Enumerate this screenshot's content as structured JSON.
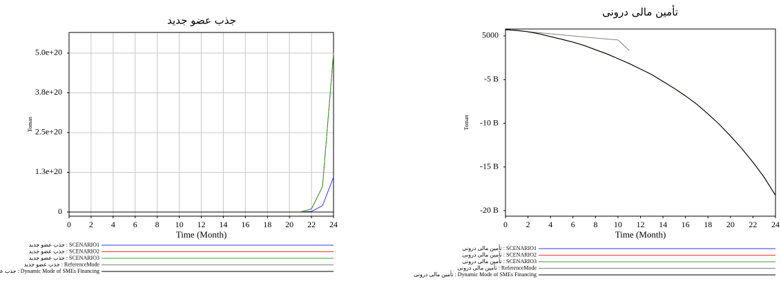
{
  "chart_data": [
    {
      "type": "line",
      "title": "جذب عضو جدید",
      "x_label": "Time (Month)",
      "y_label": "Toman",
      "x": [
        0,
        1,
        2,
        3,
        4,
        5,
        6,
        7,
        8,
        9,
        10,
        11,
        12,
        13,
        14,
        15,
        16,
        17,
        18,
        19,
        20,
        21,
        22,
        23,
        24
      ],
      "xlim": [
        0,
        24
      ],
      "xticks": [
        0,
        2,
        4,
        6,
        8,
        10,
        12,
        14,
        16,
        18,
        20,
        22,
        24
      ],
      "ylim": [
        -1.3e+19,
        5.65e+20
      ],
      "yticks": [
        0,
        {
          "value": 1.25e+20,
          "label": "1.3e+20"
        },
        {
          "value": 2.5e+20,
          "label": "2.5e+20"
        },
        {
          "value": 3.75e+20,
          "label": "3.8e+20"
        },
        {
          "value": 5e+20,
          "label": "5.0e+20"
        }
      ],
      "grid": true,
      "series": [
        {
          "name": "جذب عضو جدید : SCENARIO1",
          "color": "#3333ff",
          "values": [
            0,
            0,
            0,
            0,
            0,
            0,
            0,
            0,
            0,
            0,
            0,
            0,
            0,
            0,
            0,
            0,
            0,
            0,
            0,
            0,
            0,
            0,
            2e+18,
            2e+19,
            1.1e+20
          ]
        },
        {
          "name": "جذب عضو جدید : SCENARIO2",
          "color": "#ff3333",
          "values": [
            0,
            0,
            0,
            0,
            0,
            0,
            0,
            0,
            0,
            0,
            0,
            0,
            0,
            0,
            0,
            0,
            0,
            0,
            0,
            0,
            0,
            0,
            1e+19,
            8e+19,
            5e+20
          ]
        },
        {
          "name": "جذب عضو جدید : SCENARIO3",
          "color": "#33a033",
          "values": [
            0,
            0,
            0,
            0,
            0,
            0,
            0,
            0,
            0,
            0,
            0,
            0,
            0,
            0,
            0,
            0,
            0,
            0,
            0,
            0,
            0,
            0,
            1e+19,
            8e+19,
            5e+20
          ]
        },
        {
          "name": "جذب عضو جدید : ReferenceMode",
          "color": "#808080",
          "values": [
            0,
            0,
            0,
            0,
            0,
            0,
            0,
            0,
            0,
            0,
            0,
            0,
            0,
            0,
            0,
            0,
            0,
            0,
            0,
            0,
            0,
            0,
            0,
            0,
            0
          ]
        },
        {
          "name": "جذب عضو جدید : Dynamic Mode of SMEs Financing",
          "color": "#000000",
          "values": [
            0,
            0,
            0,
            0,
            0,
            0,
            0,
            0,
            0,
            0,
            0,
            0,
            0,
            0,
            0,
            0,
            0,
            0,
            0,
            0,
            0,
            0,
            0,
            0,
            0
          ]
        }
      ]
    },
    {
      "type": "line",
      "title": "تأمین مالی درونی",
      "x_label": "Time (Month)",
      "y_label": "Toman",
      "x": [
        0,
        1,
        2,
        3,
        4,
        5,
        6,
        7,
        8,
        9,
        10,
        11,
        12,
        13,
        14,
        15,
        16,
        17,
        18,
        19,
        20,
        21,
        22,
        23,
        24
      ],
      "xlim": [
        0,
        24
      ],
      "xticks": [
        0,
        2,
        4,
        6,
        8,
        10,
        12,
        14,
        16,
        18,
        20,
        22,
        24
      ],
      "ylim": [
        -20630000000.0,
        790000000.0
      ],
      "yticks": [
        {
          "value": -20000000000.0,
          "label": "-20 B"
        },
        {
          "value": -15000000000.0,
          "label": "-15 B"
        },
        {
          "value": -10000000000.0,
          "label": "-10 B"
        },
        {
          "value": -5000000000.0,
          "label": "-5 B"
        },
        5000
      ],
      "grid": false,
      "series": [
        {
          "name": "تأمین مالی درونی : SCENARIO1",
          "color": "#3333ff",
          "values": [
            710000000.0,
            630000000.0,
            470000000.0,
            240000000.0,
            -80000000.0,
            -390000000.0,
            -710000000.0,
            -1100000000.0,
            -1580000000.0,
            -2050000000.0,
            -2600000000.0,
            -3160000000.0,
            -3790000000.0,
            -4420000000.0,
            -5210000000.0,
            -6000000000.0,
            -6870000000.0,
            -7820000000.0,
            -8930000000.0,
            -10100000000.0,
            -11450000000.0,
            -12880000000.0,
            -14460000000.0,
            -16190000000.0,
            -18250000000.0
          ]
        },
        {
          "name": "تأمین مالی درونی : SCENARIO2",
          "color": "#ff3333",
          "values": [
            710000000.0,
            630000000.0,
            470000000.0,
            240000000.0,
            -80000000.0,
            -390000000.0,
            -710000000.0,
            -1100000000.0,
            -1580000000.0,
            -2050000000.0,
            -2600000000.0,
            -3160000000.0,
            -3790000000.0,
            -4420000000.0,
            -5210000000.0,
            -6000000000.0,
            -6870000000.0,
            -7820000000.0,
            -8930000000.0,
            -10100000000.0,
            -11450000000.0,
            -12880000000.0,
            -14460000000.0,
            -16190000000.0,
            -18250000000.0
          ]
        },
        {
          "name": "تأمین مالی درونی : SCENARIO3",
          "color": "#33a033",
          "values": [
            710000000.0,
            630000000.0,
            470000000.0,
            240000000.0,
            -80000000.0,
            -390000000.0,
            -710000000.0,
            -1100000000.0,
            -1580000000.0,
            -2050000000.0,
            -2600000000.0,
            -3160000000.0,
            -3790000000.0,
            -4420000000.0,
            -5210000000.0,
            -6000000000.0,
            -6870000000.0,
            -7820000000.0,
            -8930000000.0,
            -10100000000.0,
            -11450000000.0,
            -12880000000.0,
            -14460000000.0,
            -16190000000.0,
            -18250000000.0
          ]
        },
        {
          "name": "تأمین مالی درونی : ReferenceMode",
          "color": "#808080",
          "values": [
            710000000.0,
            590000000.0,
            480000000.0,
            360000000.0,
            240000000.0,
            120000000.0,
            0,
            -120000000.0,
            -240000000.0,
            -360000000.0,
            -470000000.0,
            -1660000000.0,
            null,
            null,
            null,
            null,
            null,
            null,
            null,
            null,
            null,
            null,
            null,
            null,
            null
          ]
        },
        {
          "name": "تأمین مالی درونی : Dynamic Mode of SMEs Financing",
          "color": "#000000",
          "values": [
            710000000.0,
            630000000.0,
            470000000.0,
            240000000.0,
            -80000000.0,
            -390000000.0,
            -710000000.0,
            -1100000000.0,
            -1580000000.0,
            -2050000000.0,
            -2600000000.0,
            -3160000000.0,
            -3790000000.0,
            -4420000000.0,
            -5210000000.0,
            -6000000000.0,
            -6870000000.0,
            -7820000000.0,
            -8930000000.0,
            -10100000000.0,
            -11450000000.0,
            -12880000000.0,
            -14460000000.0,
            -16190000000.0,
            -18250000000.0
          ]
        }
      ]
    }
  ]
}
